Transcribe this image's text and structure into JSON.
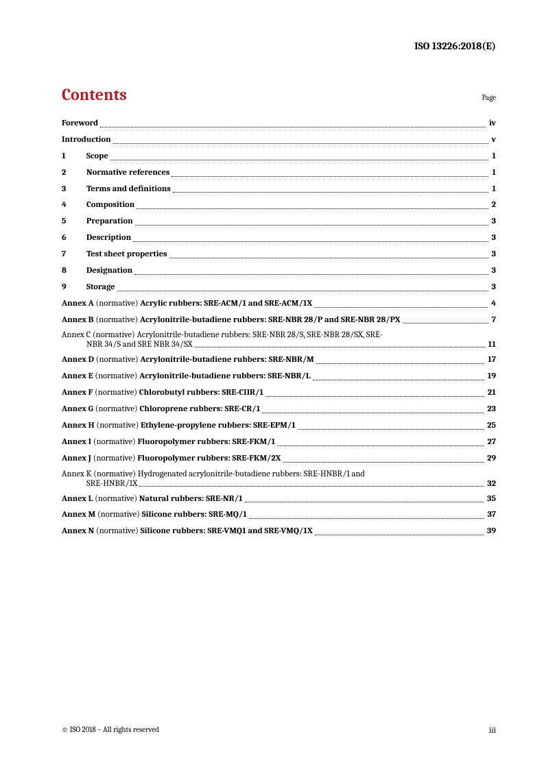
{
  "header": {
    "standard": "ISO 13226:2018(E)"
  },
  "contents": {
    "title": "Contents",
    "page_label": "Page"
  },
  "toc": {
    "front": [
      {
        "label": "Foreword",
        "page": "iv"
      },
      {
        "label": "Introduction",
        "page": "v"
      }
    ],
    "numbered": [
      {
        "num": "1",
        "label": "Scope",
        "page": "1"
      },
      {
        "num": "2",
        "label": "Normative references",
        "page": "1"
      },
      {
        "num": "3",
        "label": "Terms and definitions",
        "page": "1"
      },
      {
        "num": "4",
        "label": "Composition",
        "page": "2"
      },
      {
        "num": "5",
        "label": "Preparation",
        "page": "3"
      },
      {
        "num": "6",
        "label": "Description",
        "page": "3"
      },
      {
        "num": "7",
        "label": "Test sheet properties",
        "page": "3"
      },
      {
        "num": "8",
        "label": "Designation",
        "page": "3"
      },
      {
        "num": "9",
        "label": "Storage",
        "page": "3"
      }
    ],
    "annexes": [
      {
        "letter": "Annex A",
        "note": "(normative)",
        "title": "Acrylic rubbers: SRE-ACM/1 and SRE-ACM/1X",
        "page": "4",
        "wrap": false
      },
      {
        "letter": "Annex B",
        "note": "(normative)",
        "title": "Acrylonitrile-butadiene rubbers: SRE-NBR 28/P and SRE-NBR 28/PX",
        "page": "7",
        "wrap": false
      },
      {
        "letter": "Annex C",
        "note": "(normative)",
        "title_line1": "Acrylonitrile-butadiene rubbers: SRE-NBR 28/S, SRE-NBR 28/SX, SRE-",
        "title_line2": "NBR 34/S and SRE NBR 34/SX",
        "page": "11",
        "wrap": true
      },
      {
        "letter": "Annex D",
        "note": "(normative)",
        "title": "Acrylonitrile-butadiene rubbers: SRE-NBR/M",
        "page": "17",
        "wrap": false
      },
      {
        "letter": "Annex E",
        "note": "(normative)",
        "title": "Acrylonitrile-butadiene rubbers: SRE-NBR/L",
        "page": "19",
        "wrap": false
      },
      {
        "letter": "Annex F",
        "note": "(normative)",
        "title": "Chlorobutyl rubbers: SRE-CIIR/1",
        "page": "21",
        "wrap": false
      },
      {
        "letter": "Annex G",
        "note": "(normative)",
        "title": "Chloroprene rubbers: SRE-CR/1",
        "page": "23",
        "wrap": false
      },
      {
        "letter": "Annex H",
        "note": "(normative)",
        "title": "Ethylene-propylene rubbers: SRE-EPM/1",
        "page": "25",
        "wrap": false
      },
      {
        "letter": "Annex I",
        "note": "(normative)",
        "title": "Fluoropolymer rubbers: SRE-FKM/1",
        "page": "27",
        "wrap": false
      },
      {
        "letter": "Annex J",
        "note": "(normative)",
        "title": "Fluoropolymer rubbers: SRE-FKM/2X",
        "page": "29",
        "wrap": false
      },
      {
        "letter": "Annex K",
        "note": "(normative)",
        "title_line1": "Hydrogenated acrylonitrile-butadiene rubbers: SRE-HNBR/1 and",
        "title_line2": "SRE-HNBR/1X",
        "page": "32",
        "wrap": true
      },
      {
        "letter": "Annex L",
        "note": "(normative)",
        "title": "Natural rubbers: SRE-NR/1",
        "page": "35",
        "wrap": false
      },
      {
        "letter": "Annex M",
        "note": "(normative)",
        "title": "Silicone rubbers: SRE-MQ/1",
        "page": "37",
        "wrap": false
      },
      {
        "letter": "Annex N",
        "note": "(normative)",
        "title": "Silicone rubbers: SRE-VMQ1 and SRE-VMQ/1X",
        "page": "39",
        "wrap": false
      }
    ]
  },
  "footer": {
    "copyright": "© ISO 2018 – All rights reserved",
    "page_num": "iii"
  },
  "style": {
    "accent_color": "#b12028",
    "text_color": "#000000",
    "background_color": "#ffffff",
    "body_font_size_pt": 9.5,
    "title_font_size_pt": 18
  }
}
